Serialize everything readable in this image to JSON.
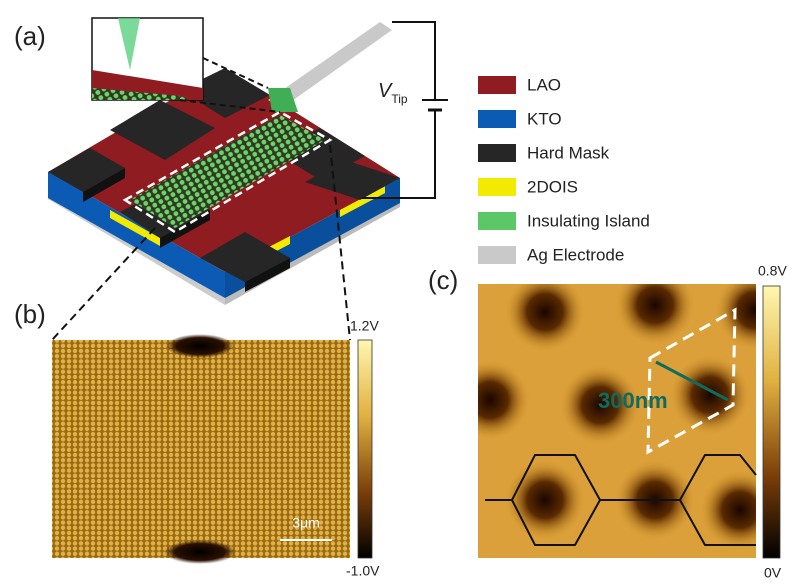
{
  "panels": {
    "a": "(a)",
    "b": "(b)",
    "c": "(c)"
  },
  "voltage": {
    "symbol": "V",
    "subscript": "Tip"
  },
  "legend": [
    {
      "label": "LAO",
      "color": "#8e1c20"
    },
    {
      "label": "KTO",
      "color": "#0b5bb5"
    },
    {
      "label": "Hard Mask",
      "color": "#262626"
    },
    {
      "label": "2DOIS",
      "color": "#f2ea00"
    },
    {
      "label": "Insulating Island",
      "color": "#5cc766"
    },
    {
      "label": "Ag Electrode",
      "color": "#c9c9c9"
    }
  ],
  "panel_b": {
    "colorbar_max": "1.2V",
    "colorbar_min": "-1.0V",
    "scale_bar": "3μm"
  },
  "panel_c": {
    "colorbar_max": "0.8V",
    "colorbar_min": "0V",
    "annotation": "300nm"
  }
}
